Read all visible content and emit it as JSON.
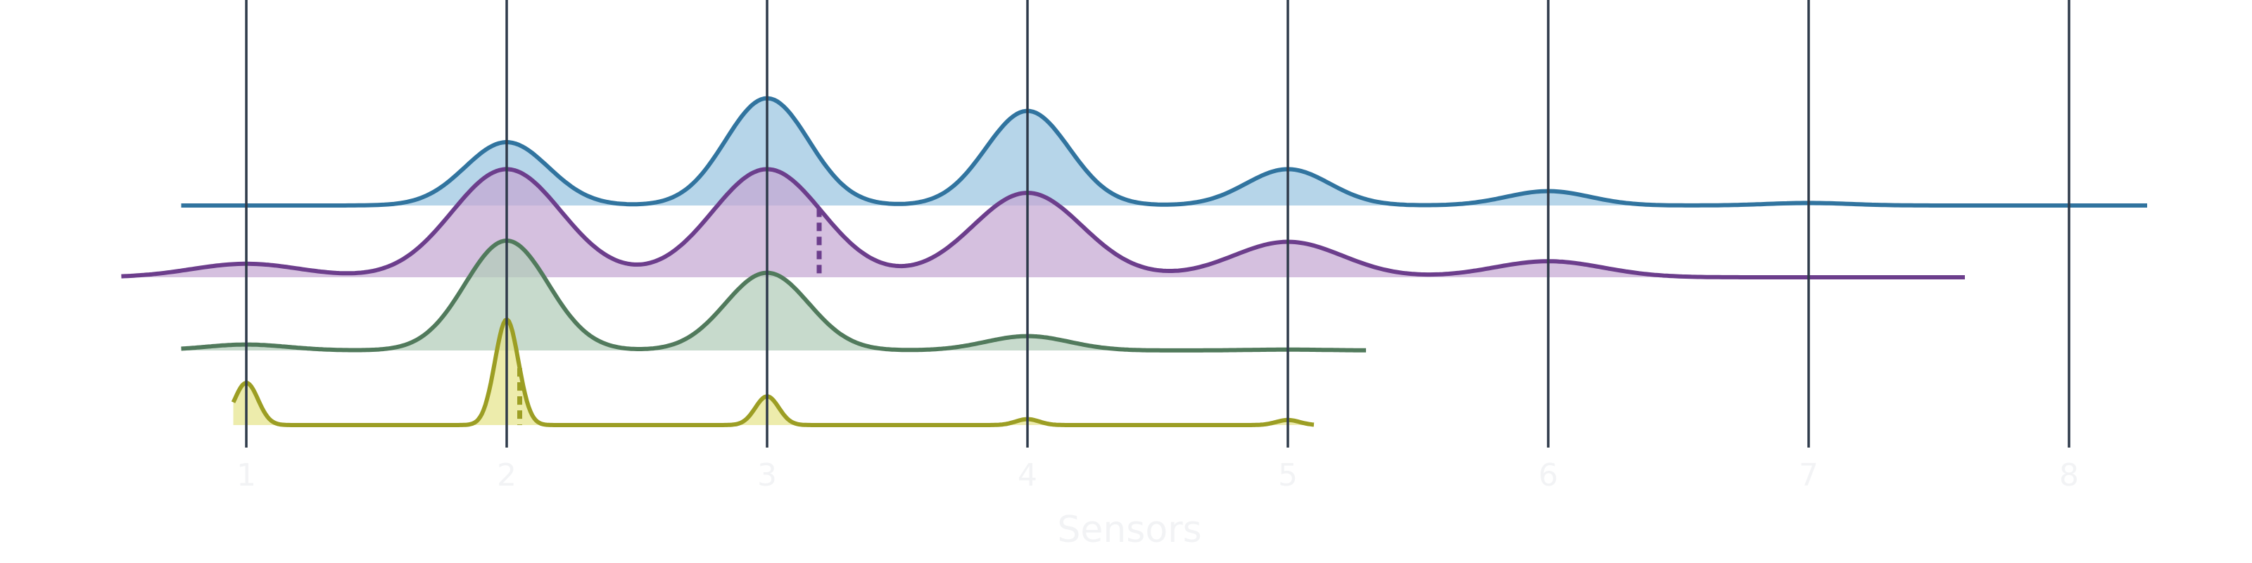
{
  "chart_data": {
    "type": "ridgeline",
    "title": "",
    "xlabel": "Sensors",
    "ylabel": "",
    "xlim": [
      0.35,
      8.65
    ],
    "x_ticks": [
      {
        "value": 1,
        "label": "1"
      },
      {
        "value": 2,
        "label": "2"
      },
      {
        "value": 3,
        "label": "3"
      },
      {
        "value": 4,
        "label": "4"
      },
      {
        "value": 5,
        "label": "5"
      },
      {
        "value": 6,
        "label": "6"
      },
      {
        "value": 7,
        "label": "7"
      },
      {
        "value": 8,
        "label": "8"
      }
    ],
    "grid": {
      "vertical": true,
      "color": "#2e3a4a"
    },
    "legend": "none",
    "series": [
      {
        "color": "#31749f",
        "fill": "#9ac5e0",
        "x_range": [
          0.75,
          8.3
        ],
        "peaks": [
          {
            "x": 2,
            "h": 0.75
          },
          {
            "x": 3,
            "h": 1.27
          },
          {
            "x": 4,
            "h": 1.12
          },
          {
            "x": 5,
            "h": 0.43
          },
          {
            "x": 6,
            "h": 0.17
          },
          {
            "x": 7,
            "h": 0.03
          }
        ],
        "sigma": 0.16,
        "marker_x": null
      },
      {
        "color": "#6c3e8c",
        "fill": "#c5a8d2",
        "x_range": [
          0.52,
          7.6
        ],
        "peaks": [
          {
            "x": 1,
            "h": 0.16
          },
          {
            "x": 2,
            "h": 1.28
          },
          {
            "x": 3,
            "h": 1.28
          },
          {
            "x": 4,
            "h": 1.0
          },
          {
            "x": 5,
            "h": 0.42
          },
          {
            "x": 6,
            "h": 0.19
          }
        ],
        "sigma": 0.21,
        "marker_x": 3.2
      },
      {
        "color": "#517a5c",
        "fill": "#b1ccb9",
        "x_range": [
          0.75,
          5.3
        ],
        "peaks": [
          {
            "x": 1,
            "h": 0.07
          },
          {
            "x": 2,
            "h": 1.3
          },
          {
            "x": 3,
            "h": 0.92
          },
          {
            "x": 4,
            "h": 0.17
          },
          {
            "x": 5,
            "h": 0.01
          }
        ],
        "sigma": 0.16,
        "marker_x": null
      },
      {
        "color": "#9c9e24",
        "fill": "#e6e48c",
        "x_range": [
          0.95,
          5.1
        ],
        "peaks": [
          {
            "x": 1,
            "h": 0.5
          },
          {
            "x": 2,
            "h": 1.25
          },
          {
            "x": 3,
            "h": 0.34
          },
          {
            "x": 4,
            "h": 0.07
          },
          {
            "x": 5,
            "h": 0.06
          }
        ],
        "sigma": 0.045,
        "marker_x": 2.05
      }
    ]
  }
}
